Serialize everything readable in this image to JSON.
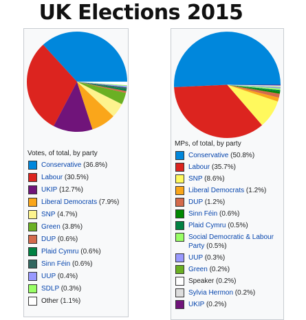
{
  "title": "UK Elections 2015",
  "chart_data": [
    {
      "type": "pie",
      "caption": "Votes, of total, by party",
      "slices": [
        {
          "label": "Conservative",
          "value_text": "(36.8%)",
          "value": 36.8,
          "color": "#0087dc"
        },
        {
          "label": "Labour",
          "value_text": "(30.5%)",
          "value": 30.5,
          "color": "#dc241f"
        },
        {
          "label": "UKIP",
          "value_text": "(12.7%)",
          "value": 12.7,
          "color": "#70147a"
        },
        {
          "label": "Liberal Democrats",
          "value_text": "(7.9%)",
          "value": 7.9,
          "color": "#faa61a"
        },
        {
          "label": "SNP",
          "value_text": "(4.7%)",
          "value": 4.7,
          "color": "#fdf38e"
        },
        {
          "label": "Green",
          "value_text": "(3.8%)",
          "value": 3.8,
          "color": "#6ab023"
        },
        {
          "label": "DUP",
          "value_text": "(0.6%)",
          "value": 0.6,
          "color": "#d46a4c"
        },
        {
          "label": "Plaid Cymru",
          "value_text": "(0.6%)",
          "value": 0.6,
          "color": "#008142"
        },
        {
          "label": "Sinn Féin",
          "value_text": "(0.6%)",
          "value": 0.6,
          "color": "#326760"
        },
        {
          "label": "UUP",
          "value_text": "(0.4%)",
          "value": 0.4,
          "color": "#9999ff"
        },
        {
          "label": "SDLP",
          "value_text": "(0.3%)",
          "value": 0.3,
          "color": "#99ff66"
        },
        {
          "label": "Other",
          "value_text": "(1.1%)",
          "value": 1.1,
          "color": "#ffffff",
          "plain": true
        }
      ]
    },
    {
      "type": "pie",
      "caption": "MPs, of total, by party",
      "slices": [
        {
          "label": "Conservative",
          "value_text": "(50.8%)",
          "value": 50.8,
          "color": "#0087dc"
        },
        {
          "label": "Labour",
          "value_text": "(35.7%)",
          "value": 35.7,
          "color": "#dc241f"
        },
        {
          "label": "SNP",
          "value_text": "(8.6%)",
          "value": 8.6,
          "color": "#fff95d"
        },
        {
          "label": "Liberal Democrats",
          "value_text": "(1.2%)",
          "value": 1.2,
          "color": "#faa61a"
        },
        {
          "label": "DUP",
          "value_text": "(1.2%)",
          "value": 1.2,
          "color": "#d46a4c"
        },
        {
          "label": "Sinn Féin",
          "value_text": "(0.6%)",
          "value": 0.6,
          "color": "#008800"
        },
        {
          "label": "Plaid Cymru",
          "value_text": "(0.5%)",
          "value": 0.5,
          "color": "#008142"
        },
        {
          "label": "Social Democratic & Labour Party",
          "value_text": "(0.5%)",
          "value": 0.5,
          "color": "#99ff66"
        },
        {
          "label": "UUP",
          "value_text": "(0.3%)",
          "value": 0.3,
          "color": "#9999ff"
        },
        {
          "label": "Green",
          "value_text": "(0.2%)",
          "value": 0.2,
          "color": "#6ab023"
        },
        {
          "label": "Speaker",
          "value_text": "(0.2%)",
          "value": 0.2,
          "color": "#ffffff",
          "plain": true
        },
        {
          "label": "Sylvia Hermon",
          "value_text": "(0.2%)",
          "value": 0.2,
          "color": "#dddddd"
        },
        {
          "label": "UKIP",
          "value_text": "(0.2%)",
          "value": 0.2,
          "color": "#70147a"
        }
      ]
    }
  ]
}
